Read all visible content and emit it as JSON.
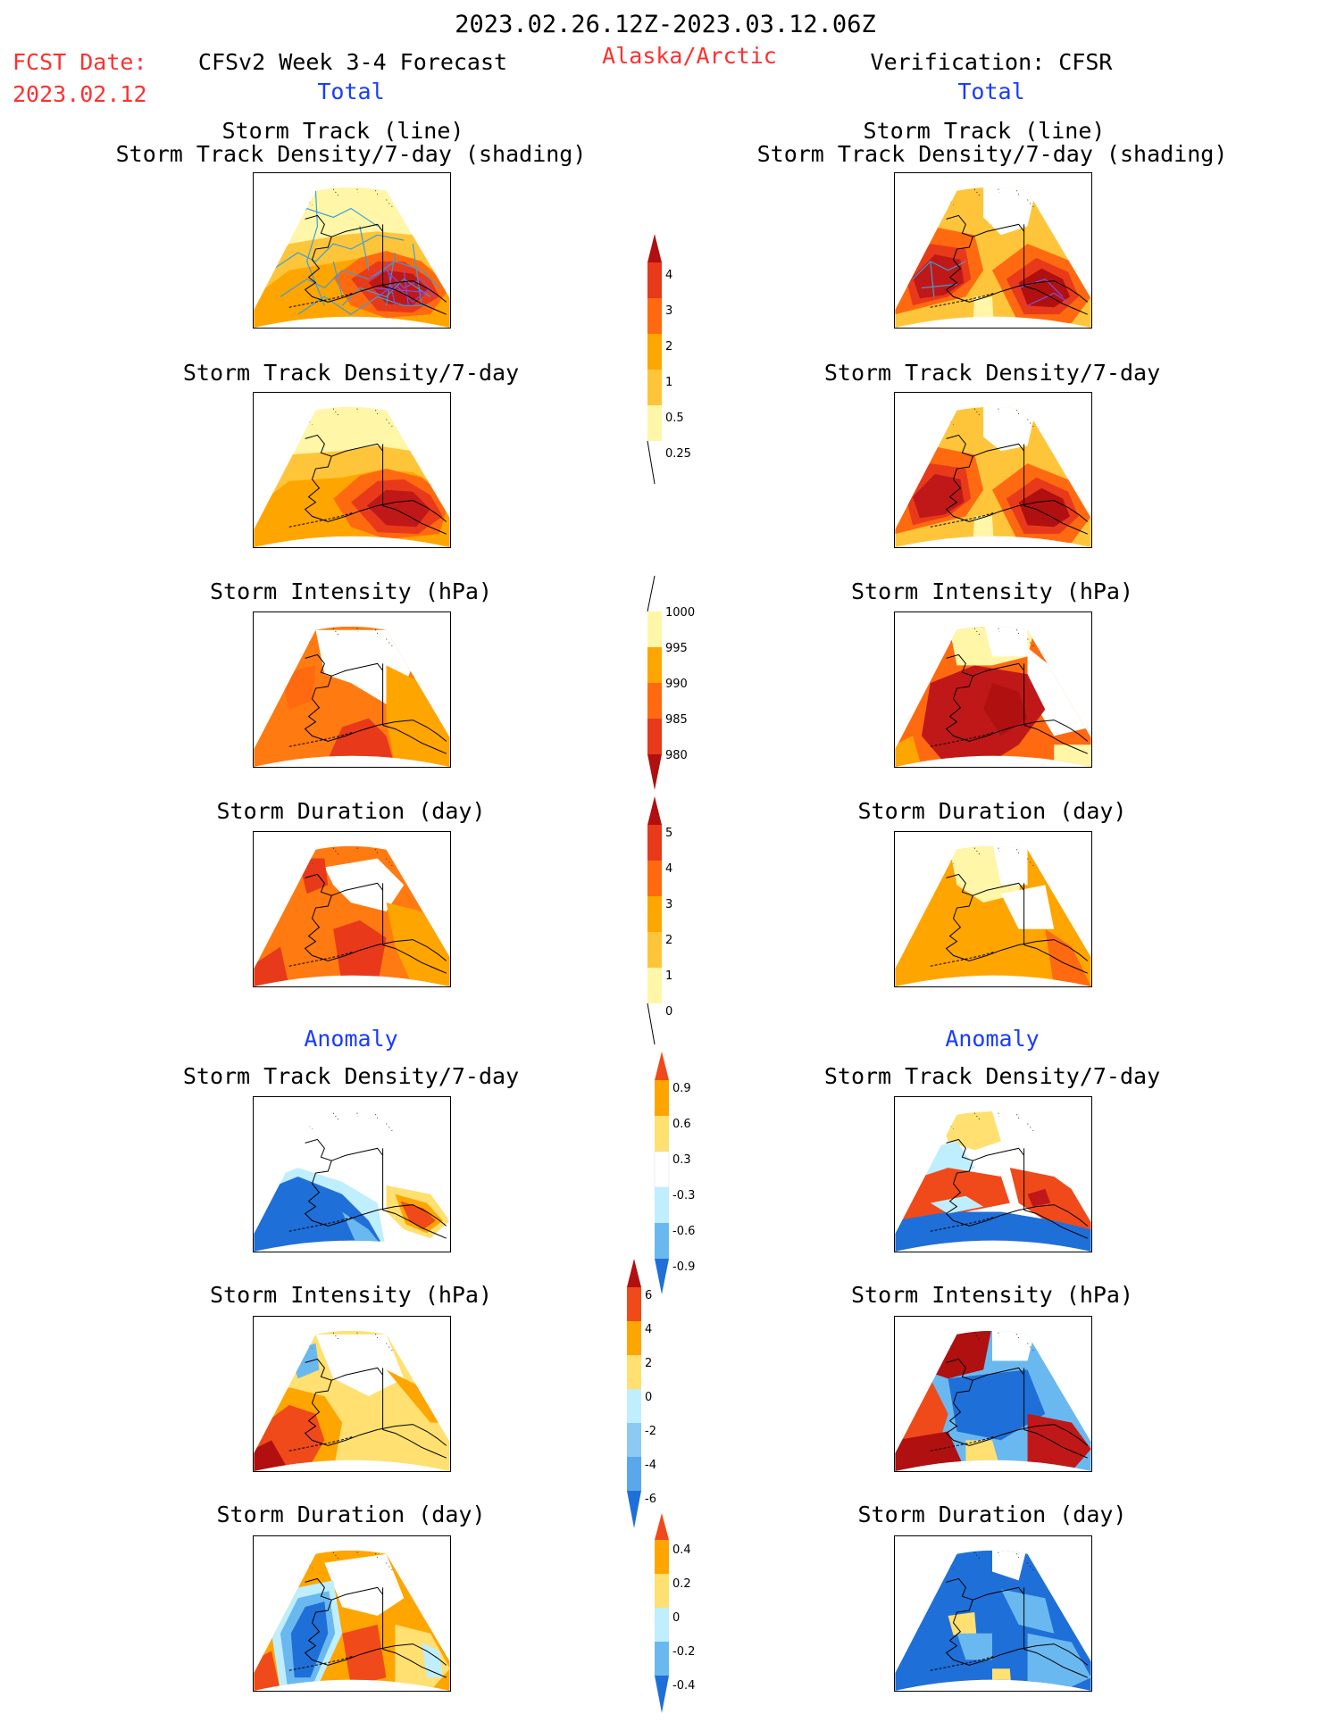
{
  "header": {
    "date_range": "2023.02.26.12Z-2023.03.12.06Z",
    "fcst_label": "FCST Date:",
    "fcst_date": "2023.02.12",
    "region": "Alaska/Arctic",
    "left_title": "CFSv2 Week 3-4 Forecast",
    "right_title": "Verification: CFSR",
    "left_total": "Total",
    "right_total": "Total",
    "left_anomaly": "Anomaly",
    "right_anomaly": "Anomaly"
  },
  "colors": {
    "title_red": "#ff3030",
    "title_blue": "#1a3cff"
  },
  "panels": {
    "track": {
      "title1": "Storm Track (line)",
      "title2": "Storm Track Density/7-day (shading)"
    },
    "density": {
      "title": "Storm Track Density/7-day"
    },
    "intensity": {
      "title": "Storm Intensity (hPa)"
    },
    "duration": {
      "title": "Storm Duration (day)"
    },
    "anom_density": {
      "title": "Storm Track Density/7-day"
    },
    "anom_intensity": {
      "title": "Storm Intensity (hPa)"
    },
    "anom_duration": {
      "title": "Storm Duration (day)"
    }
  },
  "colorbars": {
    "density": {
      "labels": [
        "4",
        "3",
        "2",
        "1",
        "0.5",
        "0.25"
      ]
    },
    "intensity": {
      "labels": [
        "1000",
        "995",
        "990",
        "985",
        "980"
      ]
    },
    "duration": {
      "labels": [
        "5",
        "4",
        "3",
        "2",
        "1",
        "0"
      ]
    },
    "anom_density": {
      "labels": [
        "0.9",
        "0.6",
        "0.3",
        "-0.3",
        "-0.6",
        "-0.9"
      ]
    },
    "anom_intensity": {
      "labels": [
        "6",
        "4",
        "2",
        "0",
        "-2",
        "-4",
        "-6"
      ]
    },
    "anom_duration": {
      "labels": [
        "0.4",
        "0.2",
        "0",
        "-0.2",
        "-0.4"
      ]
    }
  }
}
